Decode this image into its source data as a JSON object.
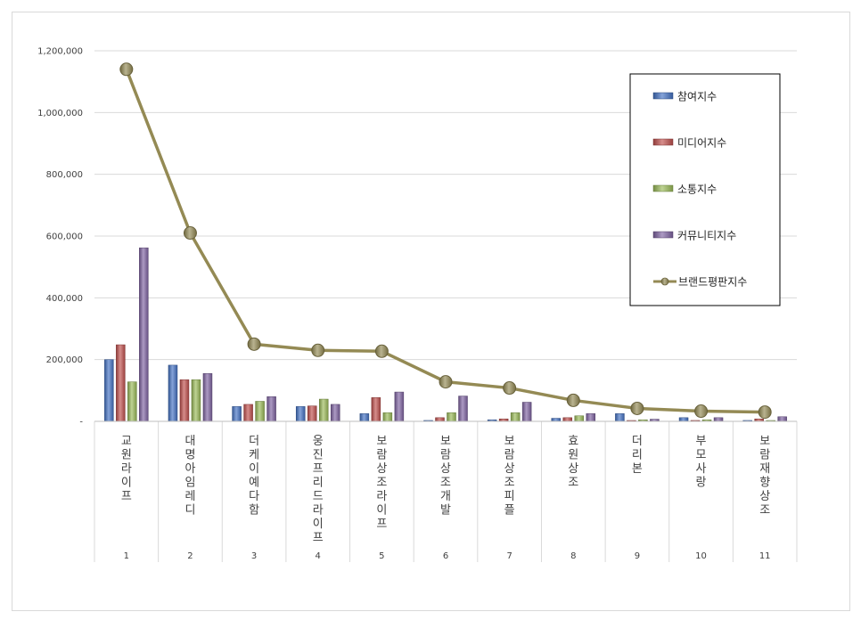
{
  "chart_data": {
    "type": "bar",
    "y_tick_labels": [
      "-",
      "200,000",
      "400,000",
      "600,000",
      "800,000",
      "1,000,000",
      "1,200,000"
    ],
    "ylim": [
      0,
      1200000
    ],
    "grid": true,
    "legend_position": "top-right",
    "categories": [
      "교원라이프",
      "대명아임레디",
      "더케이예다함",
      "웅진프리드라이프",
      "보람상조라이프",
      "보람상조개발",
      "보람상조피플",
      "효원상조",
      "더리본",
      "부모사랑",
      "보람재향상조"
    ],
    "ranks": [
      "1",
      "2",
      "3",
      "4",
      "5",
      "6",
      "7",
      "8",
      "9",
      "10",
      "11"
    ],
    "series": [
      {
        "name": "참여지수",
        "kind": "bar",
        "color": "#4472c4",
        "values": [
          200000,
          182000,
          48000,
          48000,
          25000,
          3000,
          5000,
          10000,
          25000,
          12000,
          3000
        ]
      },
      {
        "name": "미디어지수",
        "kind": "bar",
        "color": "#c0504d",
        "values": [
          248000,
          135000,
          55000,
          50000,
          77000,
          12000,
          8000,
          12000,
          2000,
          3000,
          8000
        ]
      },
      {
        "name": "소통지수",
        "kind": "bar",
        "color": "#9bbb59",
        "values": [
          128000,
          135000,
          65000,
          72000,
          28000,
          28000,
          28000,
          18000,
          5000,
          5000,
          2000
        ]
      },
      {
        "name": "커뮤니티지수",
        "kind": "bar",
        "color": "#8064a2",
        "values": [
          562000,
          155000,
          80000,
          55000,
          95000,
          82000,
          62000,
          25000,
          7000,
          12000,
          15000
        ]
      },
      {
        "name": "브랜드평판지수",
        "kind": "line",
        "color": "#948a54",
        "values": [
          1140000,
          610000,
          250000,
          230000,
          227000,
          128000,
          108000,
          68000,
          42000,
          33000,
          30000
        ]
      }
    ]
  }
}
